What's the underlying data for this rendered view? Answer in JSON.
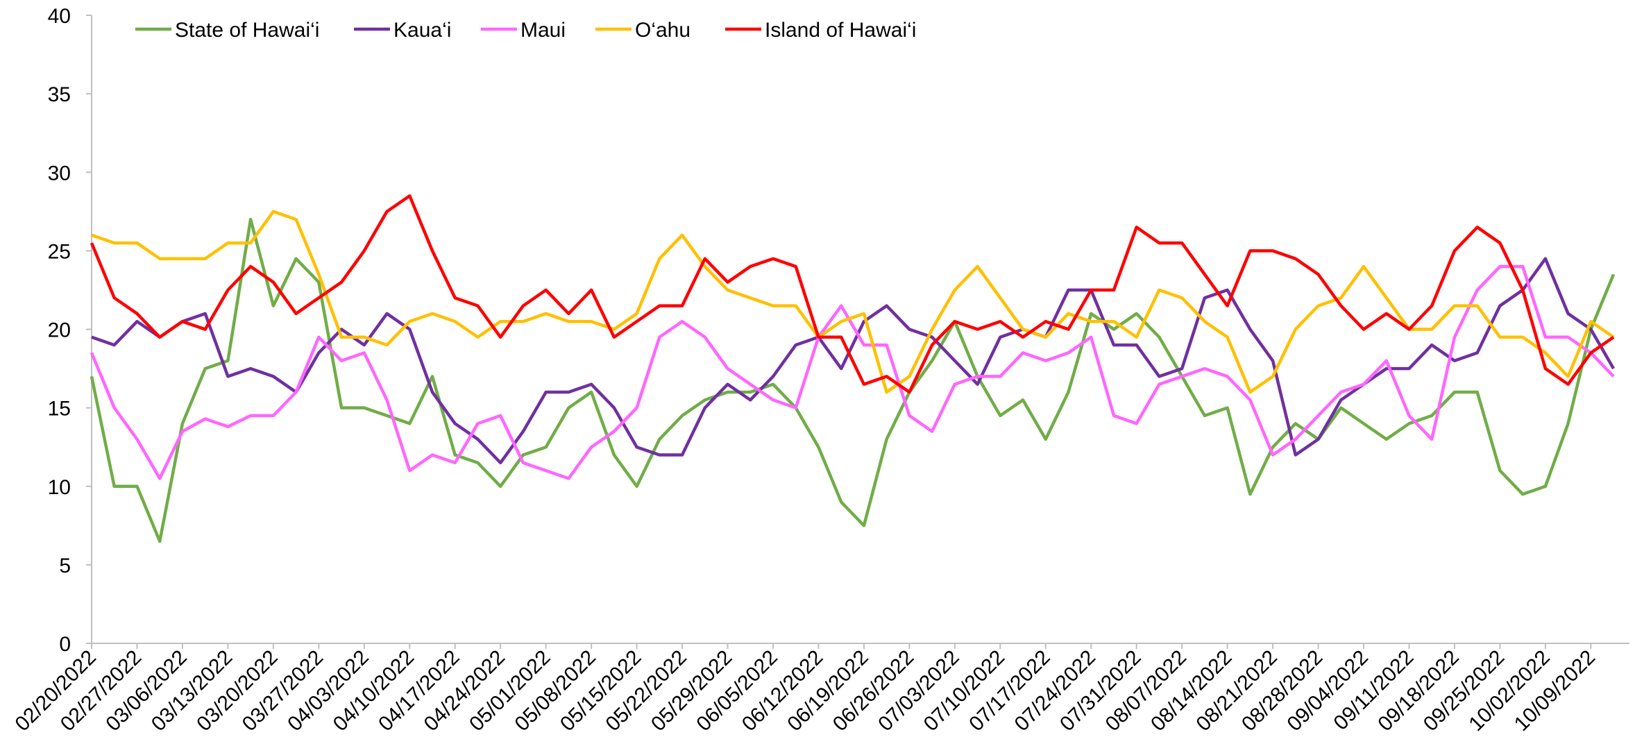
{
  "chart_data": {
    "type": "line",
    "categories": [
      "02/20/2022",
      null,
      "02/27/2022",
      null,
      "03/06/2022",
      null,
      "03/13/2022",
      null,
      "03/20/2022",
      null,
      "03/27/2022",
      null,
      "04/03/2022",
      null,
      "04/10/2022",
      null,
      "04/17/2022",
      null,
      "04/24/2022",
      null,
      "05/01/2022",
      null,
      "05/08/2022",
      null,
      "05/15/2022",
      null,
      "05/22/2022",
      null,
      "05/29/2022",
      null,
      "06/05/2022",
      null,
      "06/12/2022",
      null,
      "06/19/2022",
      null,
      "06/26/2022",
      null,
      "07/03/2022",
      null,
      "07/10/2022",
      null,
      "07/17/2022",
      null,
      "07/24/2022",
      null,
      "07/31/2022",
      null,
      "08/07/2022",
      null,
      "08/14/2022",
      null,
      "08/21/2022",
      null,
      "08/28/2022",
      null,
      "09/04/2022",
      null,
      "09/11/2022",
      null,
      "09/18/2022",
      null,
      "09/25/2022",
      null,
      "10/02/2022",
      null,
      "10/09/2022",
      null
    ],
    "series": [
      {
        "name": "State of Hawai‘i",
        "color": "#70ad47",
        "values": [
          17,
          10,
          10,
          6.5,
          14,
          17.5,
          18,
          27,
          21.5,
          24.5,
          23,
          15,
          15,
          14.5,
          14,
          17,
          12,
          11.5,
          10,
          12,
          12.5,
          15,
          16,
          12,
          10,
          13,
          14.5,
          15.5,
          16,
          16,
          16.5,
          15,
          12.5,
          9,
          7.5,
          13,
          16,
          18,
          20.5,
          17,
          14.5,
          15.5,
          13,
          16,
          21,
          20,
          21,
          19.5,
          17,
          14.5,
          15,
          9.5,
          12.5,
          14,
          13,
          15,
          14,
          13,
          14,
          14.5,
          16,
          16,
          11,
          9.5,
          10,
          14,
          20,
          23.5
        ]
      },
      {
        "name": "Kaua‘i",
        "color": "#7030a0",
        "values": [
          19.5,
          19,
          20.5,
          19.5,
          20.5,
          21,
          17,
          17.5,
          17,
          16,
          18.5,
          20,
          19,
          21,
          20,
          16,
          14,
          13,
          11.5,
          13.5,
          16,
          16,
          16.5,
          15,
          12.5,
          12,
          12,
          15,
          16.5,
          15.5,
          17,
          19,
          19.5,
          17.5,
          20.5,
          21.5,
          20,
          19.5,
          18,
          16.5,
          19.5,
          20,
          19.5,
          22.5,
          22.5,
          19,
          19,
          17,
          17.5,
          22,
          22.5,
          20,
          18,
          12,
          13,
          15.5,
          16.5,
          17.5,
          17.5,
          19,
          18,
          18.5,
          21.5,
          22.5,
          24.5,
          21,
          20,
          17.5
        ]
      },
      {
        "name": "Maui",
        "color": "#ff66ff",
        "values": [
          18.5,
          15,
          13,
          10.5,
          13.5,
          14.3,
          13.8,
          14.5,
          14.5,
          16,
          19.5,
          18,
          18.5,
          15.5,
          11,
          12,
          11.5,
          14,
          14.5,
          11.5,
          11,
          10.5,
          12.5,
          13.5,
          15,
          19.5,
          20.5,
          19.5,
          17.5,
          16.5,
          15.5,
          15,
          19.5,
          21.5,
          19,
          19,
          14.5,
          13.5,
          16.5,
          17,
          17,
          18.5,
          18,
          18.5,
          19.5,
          14.5,
          14,
          16.5,
          17,
          17.5,
          17,
          15.5,
          12,
          13,
          14.5,
          16,
          16.5,
          18,
          14.5,
          13,
          19.5,
          22.5,
          24,
          24,
          19.5,
          19.5,
          18.5,
          17
        ]
      },
      {
        "name": "O‘ahu",
        "color": "#ffc000",
        "values": [
          26,
          25.5,
          25.5,
          24.5,
          24.5,
          24.5,
          25.5,
          25.5,
          27.5,
          27,
          23.5,
          19.5,
          19.5,
          19,
          20.5,
          21,
          20.5,
          19.5,
          20.5,
          20.5,
          21,
          20.5,
          20.5,
          20,
          21,
          24.5,
          26,
          24,
          22.5,
          22,
          21.5,
          21.5,
          19.5,
          20.5,
          21,
          16,
          17,
          20,
          22.5,
          24,
          22,
          20,
          19.5,
          21,
          20.5,
          20.5,
          19.5,
          22.5,
          22,
          20.5,
          19.5,
          16,
          17,
          20,
          21.5,
          22,
          24,
          22,
          20,
          20,
          21.5,
          21.5,
          19.5,
          19.5,
          18.5,
          17,
          20.5,
          19.5
        ]
      },
      {
        "name": "Island of Hawai‘i",
        "color": "#ff0000",
        "values": [
          25.5,
          22,
          21,
          19.5,
          20.5,
          20,
          22.5,
          24,
          23,
          21,
          22,
          23,
          25,
          27.5,
          28.5,
          25,
          22,
          21.5,
          19.5,
          21.5,
          22.5,
          21,
          22.5,
          19.5,
          20.5,
          21.5,
          21.5,
          24.5,
          23,
          24,
          24.5,
          24,
          19.5,
          19.5,
          16.5,
          17,
          16,
          19,
          20.5,
          20,
          20.5,
          19.5,
          20.5,
          20,
          22.5,
          22.5,
          26.5,
          25.5,
          25.5,
          23.5,
          21.5,
          25,
          25,
          24.5,
          23.5,
          21.5,
          20,
          21,
          20,
          21.5,
          25,
          26.5,
          25.5,
          22.5,
          17.5,
          16.5,
          18.5,
          19.5
        ]
      }
    ],
    "ylim": [
      0,
      40
    ],
    "yticks": [
      0,
      5,
      10,
      15,
      20,
      25,
      30,
      35,
      40
    ]
  }
}
